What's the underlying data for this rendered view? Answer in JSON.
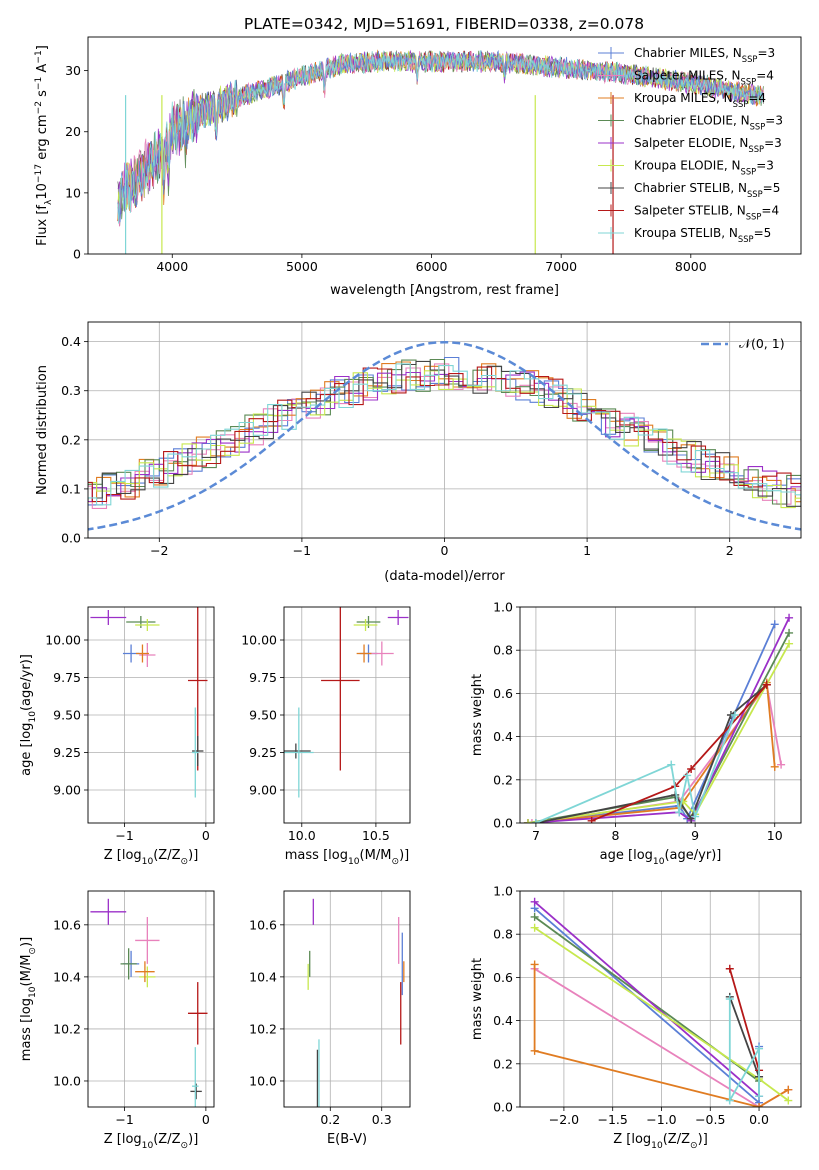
{
  "figure_title": "PLATE=0342, MJD=51691, FIBERID=0338, z=0.078",
  "colors": {
    "chabrier_miles": "#5b7fd6",
    "salpeter_miles": "#e882bc",
    "kroupa_miles": "#e07c22",
    "chabrier_elodie": "#5b8a55",
    "salpeter_elodie": "#9b30c8",
    "kroupa_elodie": "#c7e84e",
    "chabrier_stelib": "#444444",
    "salpeter_stelib": "#b51818",
    "kroupa_stelib": "#7fd6d6",
    "gaussian": "#5b8ad6"
  },
  "chart_data": [
    {
      "id": "spectrum",
      "type": "line",
      "title": "PLATE=0342, MJD=51691, FIBERID=0338, z=0.078",
      "xlabel": "wavelength [Angstrom, rest frame]",
      "ylabel_main": "Flux [f",
      "ylabel_sub": "λ",
      "ylabel_rest": "10",
      "ylabel_sup1": "−17",
      "ylabel_rest2": " erg cm",
      "ylabel_sup2": "−2",
      "ylabel_rest3": " s",
      "ylabel_sup3": "−1",
      "ylabel_rest4": " A",
      "ylabel_sup4": "−1",
      "ylabel_end": "]",
      "xlim": [
        3350,
        8850
      ],
      "ylim": [
        0,
        35.5
      ],
      "xticks": [
        4000,
        5000,
        6000,
        7000,
        8000
      ],
      "xtick_labels": [
        "4000",
        "5000",
        "6000",
        "7000",
        "8000"
      ],
      "yticks": [
        0,
        10,
        20,
        30
      ],
      "ytick_labels": [
        "0",
        "10",
        "20",
        "30"
      ],
      "continuum": [
        [
          3570,
          8
        ],
        [
          3700,
          12
        ],
        [
          3850,
          15
        ],
        [
          4000,
          20
        ],
        [
          4200,
          23
        ],
        [
          4500,
          25.5
        ],
        [
          4800,
          27.5
        ],
        [
          5000,
          29
        ],
        [
          5300,
          31
        ],
        [
          5600,
          31.5
        ],
        [
          6000,
          31.5
        ],
        [
          6500,
          31.5
        ],
        [
          7000,
          30.5
        ],
        [
          7500,
          29.5
        ],
        [
          8000,
          28
        ],
        [
          8500,
          26
        ]
      ],
      "legend": [
        {
          "name": "Chabrier MILES, N",
          "sub": "SSP",
          "rest": "=3",
          "key": "chabrier_miles"
        },
        {
          "name": "Salpeter MILES, N",
          "sub": "SSP",
          "rest": "=4",
          "key": "salpeter_miles"
        },
        {
          "name": "Kroupa MILES, N",
          "sub": "SSP",
          "rest": "=4",
          "key": "kroupa_miles"
        },
        {
          "name": "Chabrier ELODIE, N",
          "sub": "SSP",
          "rest": "=3",
          "key": "chabrier_elodie"
        },
        {
          "name": "Salpeter ELODIE, N",
          "sub": "SSP",
          "rest": "=3",
          "key": "salpeter_elodie"
        },
        {
          "name": "Kroupa ELODIE, N",
          "sub": "SSP",
          "rest": "=3",
          "key": "kroupa_elodie"
        },
        {
          "name": "Chabrier STELIB, N",
          "sub": "SSP",
          "rest": "=5",
          "key": "chabrier_stelib"
        },
        {
          "name": "Salpeter STELIB, N",
          "sub": "SSP",
          "rest": "=4",
          "key": "salpeter_stelib"
        },
        {
          "name": "Kroupa STELIB, N",
          "sub": "SSP",
          "rest": "=5",
          "key": "kroupa_stelib"
        }
      ]
    },
    {
      "id": "residuals",
      "type": "bar",
      "xlabel": "(data-model)/error",
      "ylabel": "Normed distribution",
      "xlim": [
        -2.5,
        2.5
      ],
      "ylim": [
        0,
        0.44
      ],
      "xticks": [
        -2,
        -1,
        0,
        1,
        2
      ],
      "xtick_labels": [
        "−2",
        "−1",
        "0",
        "1",
        "2"
      ],
      "yticks": [
        0.0,
        0.1,
        0.2,
        0.3,
        0.4
      ],
      "ytick_labels": [
        "0.0",
        "0.1",
        "0.2",
        "0.3",
        "0.4"
      ],
      "grid": true,
      "legend_label": "𝒩(0, 1)",
      "legend_placement": "top-right",
      "gaussian": {
        "mu": 0,
        "sigma": 1
      }
    },
    {
      "id": "z_age",
      "type": "scatter",
      "xlabel": "Z [log",
      "xlabel_sub": "10",
      "xlabel_rest": "(Z/Z",
      "xlabel_sub2": "⊙",
      "xlabel_end": ")]",
      "ylabel": "age  [log",
      "ylabel_sub": "10",
      "ylabel_rest": "(age/yr)]",
      "xlim": [
        -1.45,
        0.1
      ],
      "ylim": [
        8.78,
        10.22
      ],
      "xticks": [
        -1,
        0
      ],
      "xtick_labels": [
        "−1",
        "0"
      ],
      "yticks": [
        9.0,
        9.25,
        9.5,
        9.75,
        10.0
      ],
      "ytick_labels": [
        "9.00",
        "9.25",
        "9.50",
        "9.75",
        "10.00"
      ],
      "grid": true,
      "points": [
        {
          "key": "salpeter_elodie",
          "x": -1.2,
          "y": 10.15,
          "dx": 0.22,
          "dy": 0.05
        },
        {
          "key": "chabrier_elodie",
          "x": -0.8,
          "y": 10.12,
          "dx": 0.18,
          "dy": 0.04
        },
        {
          "key": "kroupa_elodie",
          "x": -0.72,
          "y": 10.1,
          "dx": 0.15,
          "dy": 0.04
        },
        {
          "key": "chabrier_miles",
          "x": -0.92,
          "y": 9.91,
          "dx": 0.1,
          "dy": 0.06
        },
        {
          "key": "salpeter_miles",
          "x": -0.72,
          "y": 9.9,
          "dx": 0.1,
          "dy": 0.08
        },
        {
          "key": "kroupa_miles",
          "x": -0.78,
          "y": 9.91,
          "dx": 0.08,
          "dy": 0.06
        },
        {
          "key": "salpeter_stelib",
          "x": -0.1,
          "y": 9.73,
          "dx": 0.12,
          "dy": 0.6
        },
        {
          "key": "chabrier_stelib",
          "x": -0.1,
          "y": 9.26,
          "dx": 0.07,
          "dy": 0.1
        },
        {
          "key": "kroupa_stelib",
          "x": -0.13,
          "y": 9.25,
          "dx": 0.04,
          "dy": 0.3
        }
      ]
    },
    {
      "id": "mass_age",
      "type": "scatter",
      "xlabel": "mass [log",
      "xlabel_sub": "10",
      "xlabel_rest": "(M/M",
      "xlabel_sub2": "⊙",
      "xlabel_end": ")]",
      "xlim": [
        9.88,
        10.73
      ],
      "ylim": [
        8.78,
        10.22
      ],
      "xticks": [
        10.0,
        10.5
      ],
      "xtick_labels": [
        "10.0",
        "10.5"
      ],
      "yticks": [
        9.0,
        9.25,
        9.5,
        9.75,
        10.0
      ],
      "ytick_labels": [
        "9.00",
        "9.25",
        "9.50",
        "9.75",
        "10.00"
      ],
      "grid": true,
      "points": [
        {
          "key": "salpeter_elodie",
          "x": 10.65,
          "y": 10.15,
          "dx": 0.07,
          "dy": 0.05
        },
        {
          "key": "chabrier_elodie",
          "x": 10.45,
          "y": 10.12,
          "dx": 0.08,
          "dy": 0.04
        },
        {
          "key": "kroupa_elodie",
          "x": 10.43,
          "y": 10.1,
          "dx": 0.08,
          "dy": 0.04
        },
        {
          "key": "chabrier_miles",
          "x": 10.45,
          "y": 9.91,
          "dx": 0.06,
          "dy": 0.06
        },
        {
          "key": "salpeter_miles",
          "x": 10.54,
          "y": 9.91,
          "dx": 0.08,
          "dy": 0.08
        },
        {
          "key": "kroupa_miles",
          "x": 10.42,
          "y": 9.91,
          "dx": 0.05,
          "dy": 0.06
        },
        {
          "key": "salpeter_stelib",
          "x": 10.26,
          "y": 9.73,
          "dx": 0.13,
          "dy": 0.6
        },
        {
          "key": "chabrier_stelib",
          "x": 9.96,
          "y": 9.26,
          "dx": 0.1,
          "dy": 0.05
        },
        {
          "key": "kroupa_stelib",
          "x": 9.98,
          "y": 9.25,
          "dx": 0.1,
          "dy": 0.3
        }
      ]
    },
    {
      "id": "age_weight",
      "type": "line",
      "xlabel": "age  [log",
      "xlabel_sub": "10",
      "xlabel_rest": "(age/yr)]",
      "ylabel": "mass weight",
      "xlim": [
        6.8,
        10.33
      ],
      "ylim": [
        0,
        1
      ],
      "xticks": [
        7,
        8,
        9,
        10
      ],
      "xtick_labels": [
        "7",
        "8",
        "9",
        "10"
      ],
      "yticks": [
        0.0,
        0.2,
        0.4,
        0.6,
        0.8,
        1.0
      ],
      "ytick_labels": [
        "0.0",
        "0.2",
        "0.4",
        "0.6",
        "0.8",
        "1.0"
      ],
      "grid": true,
      "series": [
        {
          "key": "chabrier_miles",
          "points": [
            [
              6.9,
              0.0
            ],
            [
              8.8,
              0.08
            ],
            [
              8.9,
              0.02
            ],
            [
              10.0,
              0.92
            ]
          ]
        },
        {
          "key": "salpeter_miles",
          "points": [
            [
              6.95,
              0.0
            ],
            [
              8.8,
              0.1
            ],
            [
              9.9,
              0.64
            ],
            [
              10.08,
              0.27
            ]
          ]
        },
        {
          "key": "kroupa_miles",
          "points": [
            [
              6.9,
              0.0
            ],
            [
              8.8,
              0.07
            ],
            [
              9.9,
              0.65
            ],
            [
              10.0,
              0.26
            ]
          ]
        },
        {
          "key": "chabrier_elodie",
          "points": [
            [
              6.9,
              0.0
            ],
            [
              8.75,
              0.12
            ],
            [
              8.95,
              0.02
            ],
            [
              10.18,
              0.88
            ]
          ]
        },
        {
          "key": "salpeter_elodie",
          "points": [
            [
              6.9,
              0.0
            ],
            [
              8.8,
              0.05
            ],
            [
              8.95,
              0.01
            ],
            [
              10.18,
              0.95
            ]
          ]
        },
        {
          "key": "kroupa_elodie",
          "points": [
            [
              6.9,
              0.0
            ],
            [
              8.85,
              0.1
            ],
            [
              9.0,
              0.04
            ],
            [
              10.18,
              0.83
            ]
          ]
        },
        {
          "key": "chabrier_stelib",
          "points": [
            [
              7.0,
              0.0
            ],
            [
              8.75,
              0.13
            ],
            [
              8.95,
              0.02
            ],
            [
              9.45,
              0.5
            ],
            [
              9.9,
              0.64
            ]
          ]
        },
        {
          "key": "salpeter_stelib",
          "points": [
            [
              7.7,
              0.01
            ],
            [
              8.75,
              0.17
            ],
            [
              8.95,
              0.25
            ],
            [
              9.9,
              0.64
            ]
          ]
        },
        {
          "key": "kroupa_stelib",
          "points": [
            [
              7.0,
              0.0
            ],
            [
              8.7,
              0.27
            ],
            [
              8.8,
              0.05
            ],
            [
              8.9,
              0.22
            ],
            [
              9.0,
              0.03
            ],
            [
              9.5,
              0.5
            ]
          ]
        }
      ]
    },
    {
      "id": "z_mass",
      "type": "scatter",
      "xlabel": "Z [log",
      "xlabel_sub": "10",
      "xlabel_rest": "(Z/Z",
      "xlabel_sub2": "⊙",
      "xlabel_end": ")]",
      "ylabel": "mass [log",
      "ylabel_sub": "10",
      "ylabel_rest": "(M/M",
      "ylabel_sub2": "⊙",
      "ylabel_end": ")]",
      "xlim": [
        -1.45,
        0.1
      ],
      "ylim": [
        9.9,
        10.73
      ],
      "xticks": [
        -1,
        0
      ],
      "xtick_labels": [
        "−1",
        "0"
      ],
      "yticks": [
        10.0,
        10.2,
        10.4,
        10.6
      ],
      "ytick_labels": [
        "10.0",
        "10.2",
        "10.4",
        "10.6"
      ],
      "grid": true,
      "points": [
        {
          "key": "salpeter_elodie",
          "x": -1.2,
          "y": 10.65,
          "dx": 0.22,
          "dy": 0.05
        },
        {
          "key": "salpeter_miles",
          "x": -0.72,
          "y": 10.54,
          "dx": 0.15,
          "dy": 0.09
        },
        {
          "key": "chabrier_miles",
          "x": -0.92,
          "y": 10.45,
          "dx": 0.1,
          "dy": 0.05
        },
        {
          "key": "chabrier_elodie",
          "x": -0.95,
          "y": 10.45,
          "dx": 0.1,
          "dy": 0.06
        },
        {
          "key": "kroupa_elodie",
          "x": -0.72,
          "y": 10.4,
          "dx": 0.1,
          "dy": 0.04
        },
        {
          "key": "kroupa_miles",
          "x": -0.75,
          "y": 10.42,
          "dx": 0.12,
          "dy": 0.04
        },
        {
          "key": "salpeter_stelib",
          "x": -0.1,
          "y": 10.26,
          "dx": 0.12,
          "dy": 0.12
        },
        {
          "key": "chabrier_stelib",
          "x": -0.12,
          "y": 9.96,
          "dx": 0.07,
          "dy": 0.03
        },
        {
          "key": "kroupa_stelib",
          "x": -0.13,
          "y": 9.98,
          "dx": 0.04,
          "dy": 0.15
        }
      ]
    },
    {
      "id": "ebv_mass",
      "type": "scatter",
      "xlabel": "E(B-V)",
      "xlim": [
        0.11,
        0.355
      ],
      "ylim": [
        9.9,
        10.73
      ],
      "xticks": [
        0.2,
        0.3
      ],
      "xtick_labels": [
        "0.2",
        "0.3"
      ],
      "yticks": [
        10.0,
        10.2,
        10.4,
        10.6
      ],
      "ytick_labels": [
        "10.0",
        "10.2",
        "10.4",
        "10.6"
      ],
      "grid": true,
      "points": [
        {
          "key": "salpeter_elodie",
          "x": 0.167,
          "y": 10.65,
          "dx": 0,
          "dy": 0.05
        },
        {
          "key": "kroupa_elodie",
          "x": 0.157,
          "y": 10.4,
          "dx": 0,
          "dy": 0.05
        },
        {
          "key": "chabrier_elodie",
          "x": 0.16,
          "y": 10.45,
          "dx": 0,
          "dy": 0.05
        },
        {
          "key": "chabrier_stelib",
          "x": 0.175,
          "y": 9.96,
          "dx": 0,
          "dy": 0.16
        },
        {
          "key": "kroupa_stelib",
          "x": 0.178,
          "y": 9.98,
          "dx": 0,
          "dy": 0.18
        },
        {
          "key": "salpeter_miles",
          "x": 0.333,
          "y": 10.54,
          "dx": 0,
          "dy": 0.09
        },
        {
          "key": "chabrier_miles",
          "x": 0.34,
          "y": 10.45,
          "dx": 0,
          "dy": 0.12
        },
        {
          "key": "kroupa_miles",
          "x": 0.343,
          "y": 10.42,
          "dx": 0,
          "dy": 0.04
        },
        {
          "key": "salpeter_stelib",
          "x": 0.337,
          "y": 10.26,
          "dx": 0,
          "dy": 0.12
        }
      ]
    },
    {
      "id": "z_weight",
      "type": "line",
      "xlabel": "Z [log",
      "xlabel_sub": "10",
      "xlabel_rest": "(Z/Z",
      "xlabel_sub2": "⊙",
      "xlabel_end": ")]",
      "ylabel": "mass weight",
      "xlim": [
        -2.45,
        0.43
      ],
      "ylim": [
        0,
        1
      ],
      "xticks": [
        -2.0,
        -1.5,
        -1.0,
        -0.5,
        0.0
      ],
      "xtick_labels": [
        "−2.0",
        "−1.5",
        "−1.0",
        "−0.5",
        "0.0"
      ],
      "yticks": [
        0.0,
        0.2,
        0.4,
        0.6,
        0.8,
        1.0
      ],
      "ytick_labels": [
        "0.0",
        "0.2",
        "0.4",
        "0.6",
        "0.8",
        "1.0"
      ],
      "grid": true,
      "series": [
        {
          "key": "chabrier_miles",
          "points": [
            [
              -2.3,
              0.92
            ],
            [
              0.0,
              0.02
            ],
            [
              0.0,
              0.28
            ]
          ]
        },
        {
          "key": "salpeter_miles",
          "points": [
            [
              -2.3,
              0.64
            ],
            [
              0.0,
              0.0
            ],
            [
              0.3,
              0.08
            ]
          ]
        },
        {
          "key": "kroupa_miles",
          "points": [
            [
              -2.3,
              0.66
            ],
            [
              -2.3,
              0.26
            ],
            [
              0.0,
              0.0
            ],
            [
              0.3,
              0.08
            ]
          ]
        },
        {
          "key": "chabrier_elodie",
          "points": [
            [
              -2.3,
              0.88
            ],
            [
              0.0,
              0.12
            ]
          ]
        },
        {
          "key": "salpeter_elodie",
          "points": [
            [
              -2.3,
              0.95
            ],
            [
              0.0,
              0.05
            ]
          ]
        },
        {
          "key": "kroupa_elodie",
          "points": [
            [
              -2.3,
              0.83
            ],
            [
              0.0,
              0.13
            ],
            [
              0.3,
              0.03
            ]
          ]
        },
        {
          "key": "chabrier_stelib",
          "points": [
            [
              -0.3,
              0.51
            ],
            [
              0.0,
              0.14
            ]
          ]
        },
        {
          "key": "salpeter_stelib",
          "points": [
            [
              -0.3,
              0.64
            ],
            [
              0.0,
              0.17
            ]
          ]
        },
        {
          "key": "kroupa_stelib",
          "points": [
            [
              -0.3,
              0.5
            ],
            [
              -0.3,
              0.03
            ],
            [
              0.0,
              0.27
            ],
            [
              0.0,
              0.05
            ]
          ]
        }
      ]
    }
  ]
}
